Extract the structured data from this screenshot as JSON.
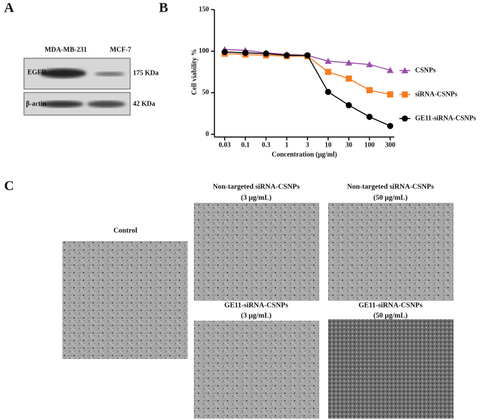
{
  "panel_labels": [
    "A",
    "B",
    "C"
  ],
  "blot": {
    "lanes": [
      "MDA-MB-231",
      "MCF-7"
    ],
    "proteins": [
      "EGFR",
      "β-actin"
    ],
    "sizes": [
      "175 KDa",
      "42 KDa"
    ]
  },
  "images": {
    "control": "Control",
    "top_middle": [
      "Non-targeted siRNA-CSNPs",
      "(3 μg/mL)"
    ],
    "top_right": [
      "Non-targeted siRNA-CSNPs",
      "(50 μg/mL)"
    ],
    "bottom_middle": [
      "GE11-siRNA-CSNPs",
      "(3 μg/mL)"
    ],
    "bottom_right": [
      "GE11-siRNA-CSNPs",
      "(50 μg/mL)"
    ]
  },
  "chart_data": {
    "type": "line",
    "xlabel": "Concentration (μg/ml)",
    "ylabel": "Cell viability %",
    "categories": [
      "0.03",
      "0.1",
      "0.3",
      "1",
      "3",
      "10",
      "30",
      "100",
      "300"
    ],
    "ylim": [
      0,
      150
    ],
    "yticks": [
      0,
      50,
      100,
      150
    ],
    "series": [
      {
        "name": "CSNPs",
        "color": "#9a4ea8",
        "marker": "triangle",
        "values": [
          102,
          101,
          98,
          96,
          95,
          88,
          86,
          84,
          77
        ]
      },
      {
        "name": "siRNA-CSNPs",
        "color": "#f47c20",
        "marker": "square",
        "values": [
          97,
          96,
          95,
          94,
          94,
          75,
          67,
          53,
          48
        ]
      },
      {
        "name": "GE11-siRNA-CSNPs",
        "color": "#000000",
        "marker": "circle",
        "values": [
          99,
          98,
          97,
          95,
          95,
          51,
          35,
          21,
          10
        ]
      }
    ]
  }
}
